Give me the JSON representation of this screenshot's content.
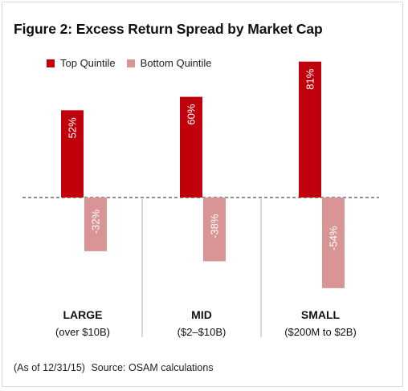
{
  "title": "Figure 2: Excess Return Spread by Market Cap",
  "legend": [
    {
      "label": "Top Quintile",
      "color": "#c0000b"
    },
    {
      "label": "Bottom Quintile",
      "color": "#d99595"
    }
  ],
  "footnote": {
    "asof": "(As of 12/31/15)",
    "source": "Source: OSAM calculations"
  },
  "chart_data": {
    "type": "bar",
    "title": "Figure 2: Excess Return Spread by Market Cap",
    "categories": [
      "LARGE",
      "MID",
      "SMALL"
    ],
    "category_sublabels": [
      "(over $10B)",
      "($2–$10B)",
      "($200M to $2B)"
    ],
    "series": [
      {
        "name": "Top Quintile",
        "color": "#c0000b",
        "values": [
          52,
          60,
          81
        ],
        "labels": [
          "52%",
          "60%",
          "81%"
        ]
      },
      {
        "name": "Bottom Quintile",
        "color": "#d99595",
        "values": [
          -32,
          -38,
          -54
        ],
        "labels": [
          "-32%",
          "-38%",
          "-54%"
        ]
      }
    ],
    "unit": "%",
    "ylim": [
      -60,
      85
    ],
    "zero_line": "dashed",
    "grid": false,
    "legend_position": "top-left"
  }
}
